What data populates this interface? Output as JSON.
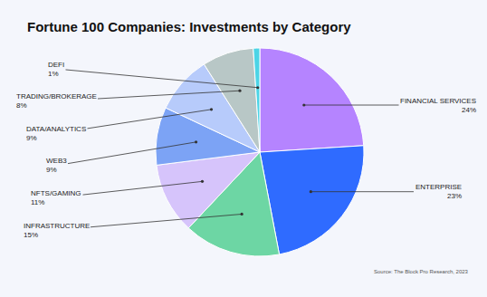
{
  "chart_data": {
    "type": "pie",
    "title": "Fortune 100 Companies: Investments by Category",
    "source": "Source: The Block Pro Research, 2023",
    "categories": [
      "FINANCIAL SERVICES",
      "ENTERPRISE",
      "INFRASTRUCTURE",
      "NFTS/GAMING",
      "WEB3",
      "DATA/ANALYTICS",
      "TRADING/BROKERAGE",
      "DEFI"
    ],
    "values": [
      24,
      23,
      15,
      11,
      9,
      9,
      8,
      1
    ],
    "value_labels": [
      "24%",
      "23%",
      "15%",
      "11%",
      "9%",
      "9%",
      "8%",
      "1%"
    ],
    "colors": [
      "#b584ff",
      "#2f6bff",
      "#6dd6a4",
      "#d6c4fb",
      "#7ca3f5",
      "#b7cbfb",
      "#b8c7c6",
      "#4cd4e6"
    ],
    "data_labels": true
  }
}
